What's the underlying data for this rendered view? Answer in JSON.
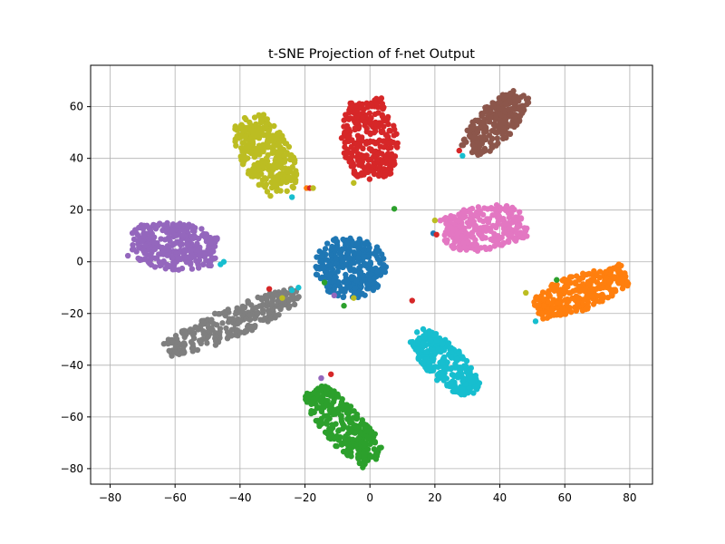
{
  "chart_data": {
    "type": "scatter",
    "title": "t-SNE Projection of f-net Output",
    "xlabel": "",
    "ylabel": "",
    "xlim": [
      -86,
      87
    ],
    "ylim": [
      -86,
      76
    ],
    "x_ticks": [
      -80,
      -60,
      -40,
      -20,
      0,
      20,
      40,
      60,
      80
    ],
    "y_ticks": [
      -80,
      -60,
      -40,
      -20,
      0,
      20,
      40,
      60
    ],
    "x_tick_labels": [
      "−80",
      "−60",
      "−40",
      "−20",
      "0",
      "20",
      "40",
      "60",
      "80"
    ],
    "y_tick_labels": [
      "−80",
      "−60",
      "−40",
      "−20",
      "0",
      "20",
      "40",
      "60"
    ],
    "grid": true,
    "legend": "none",
    "clusters": [
      {
        "color": "#1f77b4",
        "shape": "ellipse",
        "center": [
          -6,
          -2
        ],
        "radius": [
          11,
          12
        ],
        "rotation": 0,
        "points": 320
      },
      {
        "color": "#ff7f0e",
        "shape": "band",
        "from": [
          52,
          -18
        ],
        "to": [
          78,
          -5
        ],
        "width": 11,
        "points": 300
      },
      {
        "color": "#2ca02c",
        "shape": "band",
        "from": [
          -17,
          -50
        ],
        "to": [
          1,
          -77
        ],
        "width": 11,
        "points": 300
      },
      {
        "color": "#d62728",
        "shape": "band",
        "from": [
          -1,
          62
        ],
        "to": [
          1,
          33
        ],
        "width": 14,
        "points": 300
      },
      {
        "color": "#9467bd",
        "shape": "band",
        "from": [
          -73,
          8
        ],
        "to": [
          -48,
          4
        ],
        "width": 15,
        "points": 300
      },
      {
        "color": "#8c564b",
        "shape": "band",
        "from": [
          31,
          43
        ],
        "to": [
          46,
          64
        ],
        "width": 10,
        "points": 260
      },
      {
        "color": "#e377c2",
        "shape": "band",
        "from": [
          23,
          11
        ],
        "to": [
          47,
          15
        ],
        "width": 14,
        "points": 300
      },
      {
        "color": "#7f7f7f",
        "shape": "band",
        "from": [
          -62,
          -34
        ],
        "to": [
          -23,
          -13
        ],
        "width": 9,
        "points": 300
      },
      {
        "color": "#bcbd22",
        "shape": "band",
        "from": [
          -37,
          55
        ],
        "to": [
          -27,
          28
        ],
        "width": 13,
        "points": 300
      },
      {
        "color": "#17becf",
        "shape": "band",
        "from": [
          15,
          -28
        ],
        "to": [
          31,
          -50
        ],
        "width": 10,
        "points": 300
      }
    ],
    "outliers": [
      {
        "x": -45,
        "y": 0,
        "color": "#17becf"
      },
      {
        "x": -46,
        "y": -1,
        "color": "#17becf"
      },
      {
        "x": -24,
        "y": 25,
        "color": "#17becf"
      },
      {
        "x": -19.5,
        "y": 28.5,
        "color": "#ff7f0e"
      },
      {
        "x": -18.5,
        "y": 28.5,
        "color": "#d62728"
      },
      {
        "x": -17.5,
        "y": 28.5,
        "color": "#bcbd22"
      },
      {
        "x": -5,
        "y": 30.5,
        "color": "#bcbd22"
      },
      {
        "x": 7.5,
        "y": 20.5,
        "color": "#2ca02c"
      },
      {
        "x": 19.5,
        "y": 11,
        "color": "#1f77b4"
      },
      {
        "x": 20.5,
        "y": 10.5,
        "color": "#d62728"
      },
      {
        "x": 20,
        "y": 16,
        "color": "#bcbd22"
      },
      {
        "x": 27.5,
        "y": 43,
        "color": "#d62728"
      },
      {
        "x": 28.5,
        "y": 41,
        "color": "#17becf"
      },
      {
        "x": -11,
        "y": -13,
        "color": "#9467bd"
      },
      {
        "x": -14,
        "y": -8,
        "color": "#2ca02c"
      },
      {
        "x": -8,
        "y": -17,
        "color": "#2ca02c"
      },
      {
        "x": -5,
        "y": -14,
        "color": "#bcbd22"
      },
      {
        "x": 13,
        "y": -15,
        "color": "#d62728"
      },
      {
        "x": -12,
        "y": -43.5,
        "color": "#d62728"
      },
      {
        "x": -15,
        "y": -45,
        "color": "#9467bd"
      },
      {
        "x": 57.5,
        "y": -7,
        "color": "#2ca02c"
      },
      {
        "x": 48,
        "y": -12,
        "color": "#bcbd22"
      },
      {
        "x": 51,
        "y": -23,
        "color": "#17becf"
      },
      {
        "x": -31,
        "y": -10.5,
        "color": "#d62728"
      },
      {
        "x": -27,
        "y": -14,
        "color": "#bcbd22"
      },
      {
        "x": -24,
        "y": -11,
        "color": "#17becf"
      },
      {
        "x": -22,
        "y": -10,
        "color": "#17becf"
      }
    ]
  }
}
